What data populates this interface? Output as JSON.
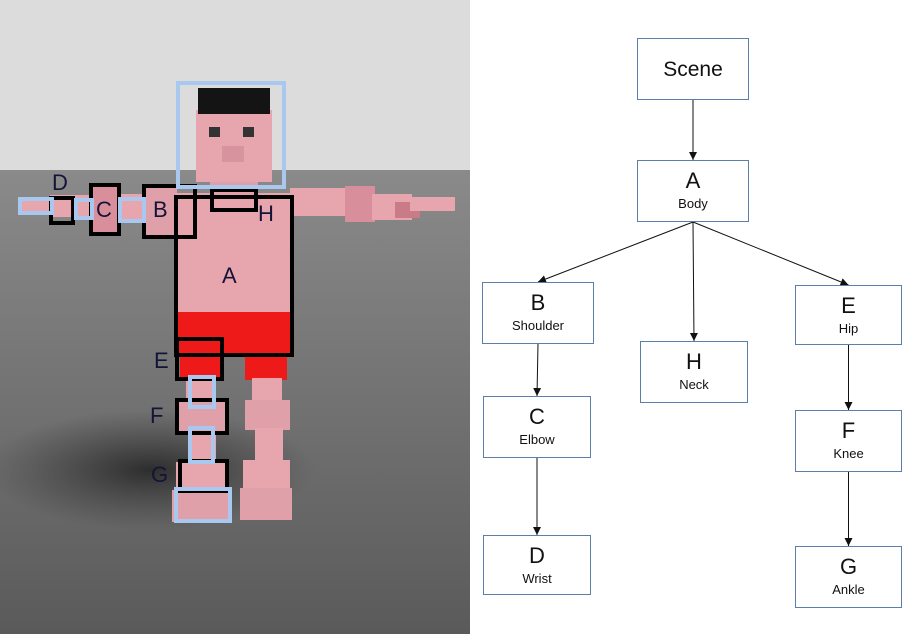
{
  "render": {
    "labels": [
      {
        "id": "A",
        "text": "A"
      },
      {
        "id": "B",
        "text": "B"
      },
      {
        "id": "C",
        "text": "C"
      },
      {
        "id": "D",
        "text": "D"
      },
      {
        "id": "E",
        "text": "E"
      },
      {
        "id": "F",
        "text": "F"
      },
      {
        "id": "G",
        "text": "G"
      },
      {
        "id": "H",
        "text": "H"
      }
    ],
    "colors": {
      "skin": "#e7a5ae",
      "shorts": "#ee1a1a",
      "hair": "#141414",
      "box_black": "#000000",
      "box_blue": "#a9c8f0",
      "background": "#dcdcdc",
      "floor": "#7a7a7a"
    }
  },
  "tree": {
    "nodes": [
      {
        "id": "scene",
        "letter": "Scene",
        "name": ""
      },
      {
        "id": "A",
        "letter": "A",
        "name": "Body"
      },
      {
        "id": "B",
        "letter": "B",
        "name": "Shoulder"
      },
      {
        "id": "H",
        "letter": "H",
        "name": "Neck"
      },
      {
        "id": "E",
        "letter": "E",
        "name": "Hip"
      },
      {
        "id": "C",
        "letter": "C",
        "name": "Elbow"
      },
      {
        "id": "F",
        "letter": "F",
        "name": "Knee"
      },
      {
        "id": "D",
        "letter": "D",
        "name": "Wrist"
      },
      {
        "id": "G",
        "letter": "G",
        "name": "Ankle"
      }
    ],
    "edges": [
      {
        "from": "scene",
        "to": "A"
      },
      {
        "from": "A",
        "to": "B"
      },
      {
        "from": "A",
        "to": "H"
      },
      {
        "from": "A",
        "to": "E"
      },
      {
        "from": "B",
        "to": "C"
      },
      {
        "from": "C",
        "to": "D"
      },
      {
        "from": "E",
        "to": "F"
      },
      {
        "from": "F",
        "to": "G"
      }
    ],
    "colors": {
      "node_border": "#5b7fa8",
      "edge": "#111111"
    }
  }
}
